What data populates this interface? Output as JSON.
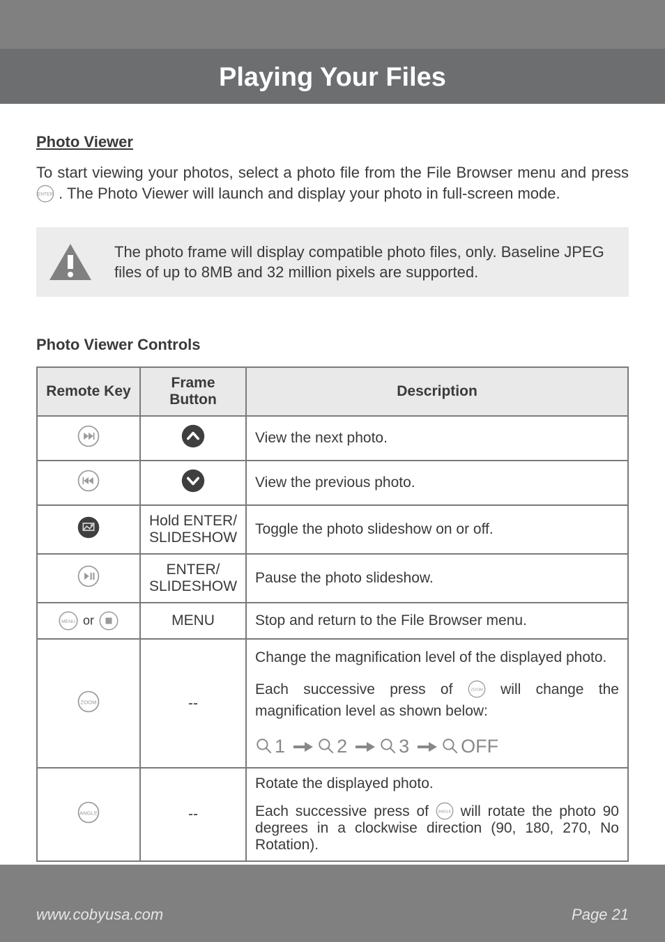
{
  "header": {
    "title": "Playing Your Files"
  },
  "section": {
    "photo_viewer_heading": "Photo Viewer",
    "intro_before": "To start viewing your photos, select a photo file from the File Browser menu and press ",
    "intro_after": ". The Photo Viewer will launch and display your photo in full-screen mode.",
    "enter_key_label": "ENTER"
  },
  "callout": {
    "text": "The photo frame will display compatible photo files, only. Baseline JPEG files of up to 8MB and 32 million pixels are supported.",
    "icon": "warning-triangle",
    "bg_color": "#ececec",
    "icon_fill": "#808080"
  },
  "controls_heading": "Photo Viewer Controls",
  "table": {
    "columns": {
      "remote": "Remote Key",
      "frame": "Frame Button",
      "desc": "Description"
    },
    "header_bg": "#e9e9e9",
    "border_color": "#7a7a7a",
    "rows": [
      {
        "remote_icon": "next-track",
        "frame_icon": "chevron-up",
        "frame_label": null,
        "desc": "View the next photo."
      },
      {
        "remote_icon": "prev-track",
        "frame_icon": "chevron-down",
        "frame_label": null,
        "desc": "View the previous photo."
      },
      {
        "remote_icon": "slideshow",
        "frame_icon": null,
        "frame_label": "Hold ENTER/\nSLIDESHOW",
        "desc": "Toggle the photo slideshow on or off."
      },
      {
        "remote_icon": "play-pause",
        "frame_icon": null,
        "frame_label": "ENTER/\nSLIDESHOW",
        "desc": "Pause the photo slideshow."
      },
      {
        "remote_icon_pair": [
          "menu",
          "stop"
        ],
        "or_text": "or",
        "frame_icon": null,
        "frame_label": "MENU",
        "desc": "Stop and return to the File Browser menu."
      },
      {
        "remote_icon": "zoom",
        "frame_label": "--",
        "desc_line1": "Change the magnification level of the displayed photo.",
        "desc_line2_before": "Each successive press of ",
        "desc_line2_after": " will change the magnification level as shown below:",
        "zoom_levels": [
          "1",
          "2",
          "3",
          "OFF"
        ]
      },
      {
        "remote_icon": "angle",
        "frame_label": "--",
        "desc_line1": "Rotate the displayed photo.",
        "desc_line2_before": "Each successive press of ",
        "desc_line2_after": " will rotate the photo 90 degrees in a clockwise direction (90, 180, 270, No Rotation)."
      }
    ]
  },
  "footer": {
    "url": "www.cobyusa.com",
    "page": "Page 21"
  },
  "colors": {
    "page_bg": "#808080",
    "header_bg": "#6c6e70",
    "text": "#3a3a3a",
    "footer_text": "#e6e6e6",
    "remote_stroke": "#9a9a9a",
    "frame_fill": "#3f3f3f",
    "arrow_fill": "#888888"
  },
  "fonts": {
    "header_pt": 38,
    "body_pt": 22,
    "table_pt": 21,
    "small_pt": 17
  }
}
